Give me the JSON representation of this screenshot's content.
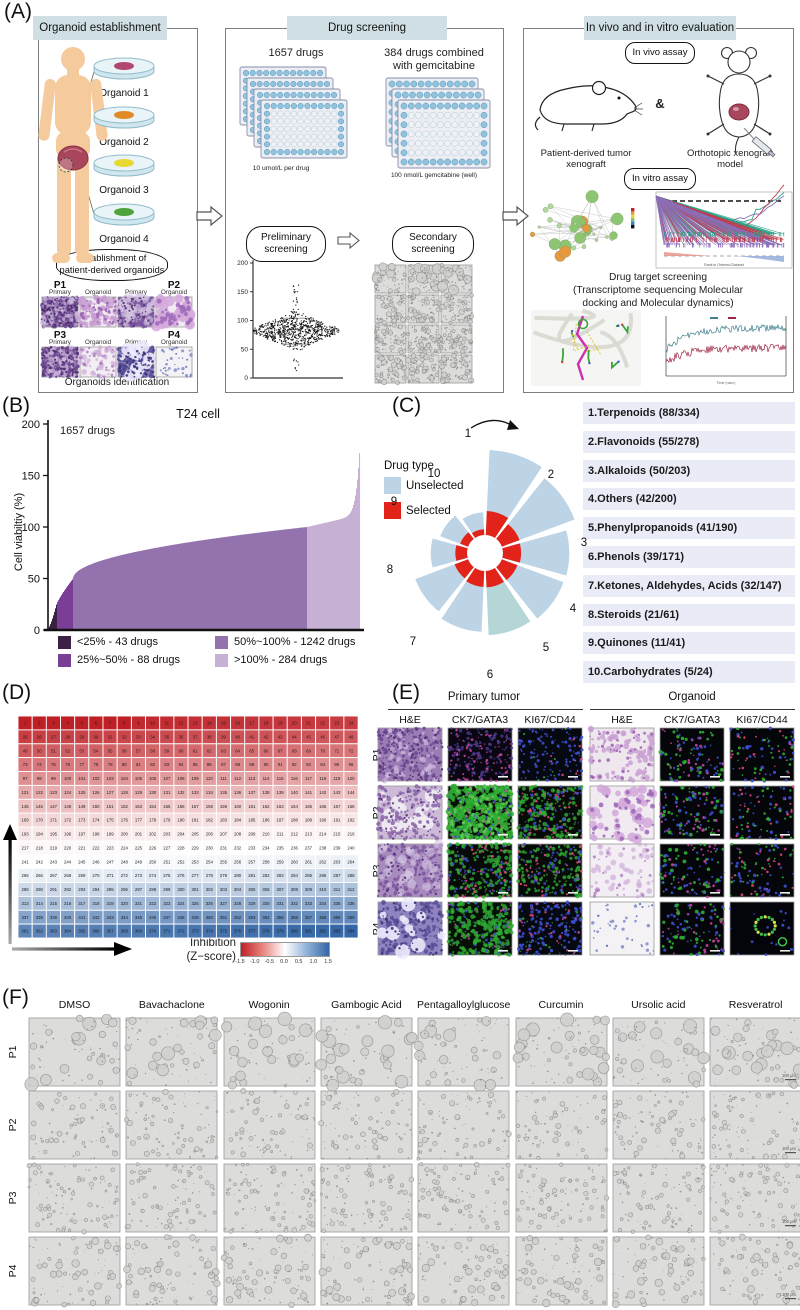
{
  "figure_labels": {
    "a": "(A)",
    "b": "(B)",
    "c": "(C)",
    "d": "(D)",
    "e": "(E)",
    "f": "(F)"
  },
  "colors": {
    "header_bg": "#cfdfe4",
    "unselected": "#bcd4e5",
    "selected": "#e2231a",
    "banner_bg": "#e9ebf7",
    "viability_segments": [
      "#3b2144",
      "#7b3e97",
      "#9372ad",
      "#c6b1d4"
    ],
    "heat_red": "#bf2026",
    "heat_blue": "#3466a6"
  },
  "panel_a": {
    "box_headers": [
      "Organoid establishment",
      "Drug screening",
      "In vivo and in vitro evaluation"
    ],
    "organoid_labels": [
      "Organoid 1",
      "Organoid 2",
      "Organoid 3",
      "Organoid 4"
    ],
    "establishment_lines": [
      "Establishment of",
      "patient-derived organoids"
    ],
    "histology_patients": [
      "P1",
      "P2",
      "P3",
      "P4"
    ],
    "histology_sublabels": [
      "Primary tumor",
      "Organoid"
    ],
    "histology_caption": "Organoids identification",
    "screening": {
      "n1657": "1657 drugs",
      "dose_label": "10 umol/L per drug",
      "n384_lines": [
        "384 drugs combined",
        "with gemcitabine"
      ],
      "gem_label": "100 nmol/L gemcitabine (well)",
      "preliminary_lines": [
        "Preliminary",
        "screening"
      ],
      "secondary_lines": [
        "Secondary",
        "screening"
      ]
    },
    "evaluation": {
      "invivo_pill": "In vivo assay",
      "ampersand": "&",
      "pdx_lines": [
        "Patient-derived tumor",
        "xenograft"
      ],
      "ortho_lines": [
        "Orthotopic xenograft",
        "model"
      ],
      "invitro_pill": "In vitro assay",
      "target_lines": [
        "Drug target screening",
        "(Transcriptome sequencing Molecular",
        "docking and Molecular dynamics)"
      ]
    }
  },
  "chart_data": [
    {
      "type": "area",
      "panel": "B",
      "title": "T24 cell",
      "annotation": "1657 drugs",
      "ylabel": "Cell viabiltiy (%)",
      "ylim": [
        0,
        200
      ],
      "yticks": [
        0,
        50,
        100,
        150,
        200
      ],
      "total_drugs": 1657,
      "min_viability": 2,
      "median_viability": 82,
      "max_viability": 190,
      "segments": [
        {
          "label": "<25% - 43 drugs",
          "count": 43,
          "color": "#3b2144"
        },
        {
          "label": "25%~50% - 88 drugs",
          "count": 88,
          "color": "#7b3e97"
        },
        {
          "label": "50%~100% - 1242 drugs",
          "count": 1242,
          "color": "#9372ad"
        },
        {
          "label": ">100% - 284 drugs",
          "count": 284,
          "color": "#c6b1d4"
        }
      ]
    },
    {
      "type": "rose",
      "panel": "C",
      "legend": {
        "title": "Drug type",
        "entries": [
          {
            "label": "Unselected",
            "color": "#bcd4e5"
          },
          {
            "label": "Selected",
            "color": "#e2231a"
          }
        ]
      },
      "categories": [
        {
          "rank": 1,
          "name": "Terpenoids",
          "selected": 88,
          "total": 334,
          "label": "1.Terpenoids (88/334)"
        },
        {
          "rank": 2,
          "name": "Flavonoids",
          "selected": 55,
          "total": 278,
          "label": "2.Flavonoids (55/278)"
        },
        {
          "rank": 3,
          "name": "Alkaloids",
          "selected": 50,
          "total": 203,
          "label": "3.Alkaloids (50/203)"
        },
        {
          "rank": 4,
          "name": "Others",
          "selected": 42,
          "total": 200,
          "label": "4.Others (42/200)"
        },
        {
          "rank": 5,
          "name": "Phenylpropanoids",
          "selected": 41,
          "total": 190,
          "label": "5.Phenylpropanoids (41/190)"
        },
        {
          "rank": 6,
          "name": "Phenols",
          "selected": 39,
          "total": 171,
          "label": "6.Phenols (39/171)"
        },
        {
          "rank": 7,
          "name": "Ketones, Aldehydes, Acids",
          "selected": 32,
          "total": 147,
          "label": "7.Ketones, Aldehydes, Acids (32/147)"
        },
        {
          "rank": 8,
          "name": "Steroids",
          "selected": 21,
          "total": 61,
          "label": "8.Steroids (21/61)"
        },
        {
          "rank": 9,
          "name": "Quinones",
          "selected": 11,
          "total": 41,
          "label": "9.Quinones (11/41)"
        },
        {
          "rank": 10,
          "name": "Carbohydrates",
          "selected": 5,
          "total": 24,
          "label": "10.Carbohydrates (5/24)"
        }
      ]
    },
    {
      "type": "heatmap",
      "panel": "D",
      "rows": 16,
      "cols": 24,
      "cell_start": 1,
      "cell_end": 384,
      "colorbar": {
        "label_lines": [
          "Inhibition",
          "(Z−score)"
        ],
        "ticks": [
          "-1.5",
          "-1.0",
          "-0.5",
          "0.0",
          "0.5",
          "1.0",
          "1.5"
        ]
      }
    },
    {
      "type": "scatter",
      "panel": "A-preliminary",
      "context": "viability distribution of preliminary screening",
      "yticks": [
        0,
        50,
        100,
        150,
        200
      ],
      "center_value": 82
    }
  ],
  "panel_e": {
    "group_headers": [
      "Primary tumor",
      "Organoid"
    ],
    "col_headers": [
      "H&E",
      "CK7/GATA3",
      "KI67/CD44"
    ],
    "rows": [
      "P1",
      "P2",
      "P3",
      "P4"
    ],
    "stains": [
      [
        "heD",
        "ifMag",
        "ifB",
        "oheP1",
        "oifSparse",
        "oifDots"
      ],
      [
        "heP2",
        "ifGreenHeavy",
        "ifGR",
        "oheP2",
        "oifSparse",
        "oifDots"
      ],
      [
        "heP3",
        "ifGR",
        "ifGR2",
        "oheP3",
        "oifSparse",
        "oifDots"
      ],
      [
        "heP4",
        "ifGdark",
        "ifKBlue",
        "oheP4",
        "oifSparse",
        "oifRing"
      ]
    ]
  },
  "panel_f": {
    "col_headers": [
      "DMSO",
      "Bavachaclone",
      "Wogonin",
      "Gambogic Acid",
      "Pentagalloylglucose",
      "Curcumin",
      "Ursolic acid",
      "Resveratrol"
    ],
    "rows": [
      "P1",
      "P2",
      "P3",
      "P4"
    ],
    "scale_label": "100 μm"
  }
}
